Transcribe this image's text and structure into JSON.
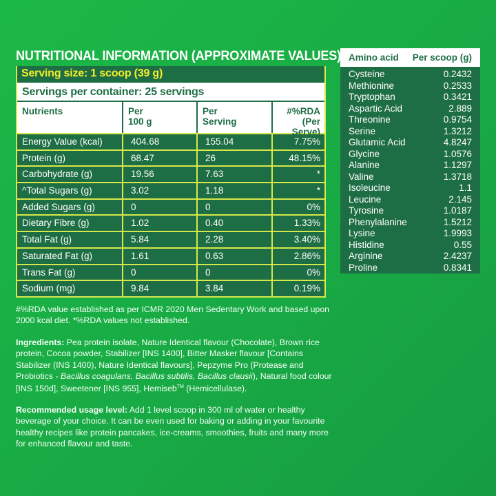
{
  "title": "NUTRITIONAL INFORMATION (APPROXIMATE VALUES):",
  "nutrition_table": {
    "serving_size": "Serving size: 1 scoop (39 g)",
    "servings_per_container": "Servings per container: 25 servings",
    "headers": {
      "nutrients": "Nutrients",
      "per100_line1": "Per",
      "per100_line2": "100 g",
      "perserving_line1": "Per",
      "perserving_line2": "Serving",
      "rda_line1": "#%RDA",
      "rda_line2": "(Per Serve)"
    },
    "rows": [
      {
        "nutrient": "Energy Value (kcal)",
        "per100": "404.68",
        "per_serving": "155.04",
        "rda": "7.75%"
      },
      {
        "nutrient": "Protein (g)",
        "per100": "68.47",
        "per_serving": "26",
        "rda": "48.15%"
      },
      {
        "nutrient": "Carbohydrate (g)",
        "per100": "19.56",
        "per_serving": "7.63",
        "rda": "*"
      },
      {
        "nutrient": "^Total Sugars (g)",
        "per100": "3.02",
        "per_serving": "1.18",
        "rda": "*"
      },
      {
        "nutrient": "Added Sugars (g)",
        "per100": "0",
        "per_serving": "0",
        "rda": "0%"
      },
      {
        "nutrient": "Dietary Fibre (g)",
        "per100": "1.02",
        "per_serving": "0.40",
        "rda": "1.33%"
      },
      {
        "nutrient": "Total Fat (g)",
        "per100": "5.84",
        "per_serving": "2.28",
        "rda": "3.40%"
      },
      {
        "nutrient": "Saturated Fat (g)",
        "per100": "1.61",
        "per_serving": "0.63",
        "rda": "2.86%"
      },
      {
        "nutrient": "Trans Fat (g)",
        "per100": "0",
        "per_serving": "0",
        "rda": "0%"
      },
      {
        "nutrient": "Sodium (mg)",
        "per100": "9.84",
        "per_serving": "3.84",
        "rda": "0.19%"
      }
    ]
  },
  "amino_table": {
    "header_name": "Amino acid",
    "header_value": "Per scoop (g)",
    "rows": [
      {
        "name": "Cysteine",
        "value": "0.2432"
      },
      {
        "name": "Methionine",
        "value": "0.2533"
      },
      {
        "name": "Tryptophan",
        "value": "0.3421"
      },
      {
        "name": "Aspartic Acid",
        "value": "2.889"
      },
      {
        "name": "Threonine",
        "value": "0.9754"
      },
      {
        "name": "Serine",
        "value": "1.3212"
      },
      {
        "name": "Glutamic Acid",
        "value": "4.8247"
      },
      {
        "name": "Glycine",
        "value": "1.0576"
      },
      {
        "name": "Alanine",
        "value": "1.1297"
      },
      {
        "name": "Valine",
        "value": "1.3718"
      },
      {
        "name": "Isoleucine",
        "value": "1.1"
      },
      {
        "name": "Leucine",
        "value": "2.145"
      },
      {
        "name": "Tyrosine",
        "value": "1.0187"
      },
      {
        "name": "Phenylalanine",
        "value": "1.5212"
      },
      {
        "name": "Lysine",
        "value": "1.9993"
      },
      {
        "name": "Histidine",
        "value": "0.55"
      },
      {
        "name": "Arginine",
        "value": "2.4237"
      },
      {
        "name": "Proline",
        "value": "0.8341"
      }
    ]
  },
  "footnote": "#%RDA value established as per ICMR 2020 Men Sedentary Work and based upon 2000 kcal diet. *%RDA values not established.",
  "ingredients": {
    "label": "Ingredients:",
    "text_1": " Pea protein isolate, Nature Identical flavour (Chocolate), Brown rice protein, Cocoa powder, Stabilizer [INS 1400], Bitter Masker flavour [Contains Stabilizer (INS 1400), Nature Identical flavours], Pepzyme Pro (Protease and Probiotics - ",
    "italic": "Bacillus coagulans, Bacillus subtilis, Bacillus clausii",
    "text_2": "), Natural food colour [INS 150d], Sweetener [INS 955], Hemiseb",
    "tm": "TM",
    "text_3": " (Hemicellulase)."
  },
  "usage": {
    "label": "Recommended usage level:",
    "text": " Add 1 level scoop in 300 ml of water or healthy beverage of your choice. It can be even used for baking or adding in your favourite healthy recipes like protein pancakes, ice-creams, smoothies, fruits and many more for enhanced flavour and taste."
  },
  "colors": {
    "background": "#1ab545",
    "table_dark_green": "#1e6e45",
    "grid_yellow": "#d8e84a",
    "serving_yellow": "#f4ee2a",
    "header_white": "#ffffff"
  }
}
